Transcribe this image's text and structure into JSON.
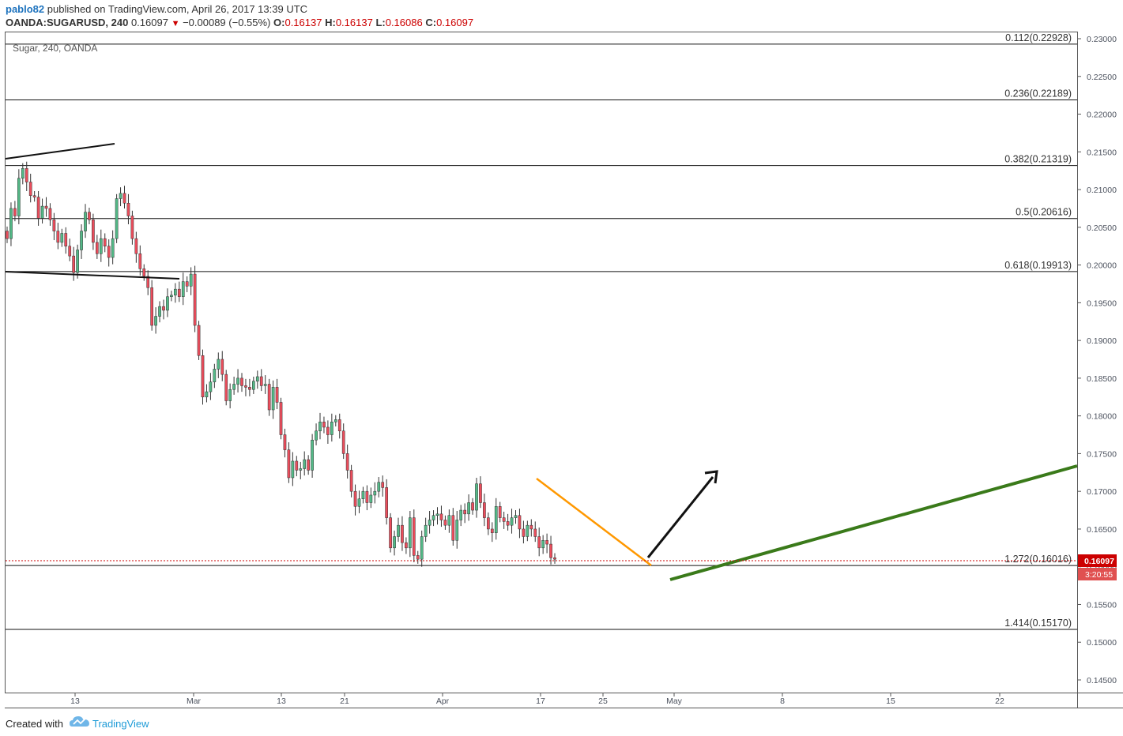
{
  "header": {
    "author": "pablo82",
    "published_text": "published on TradingView.com, April 26, 2017 13:39 UTC",
    "symbol": "OANDA:SUGARUSD, 240",
    "last": "0.16097",
    "change": "−0.00089 (−0.55%)",
    "o_label": "O:",
    "o_value": "0.16137",
    "h_label": "H:",
    "h_value": "0.16137",
    "l_label": "L:",
    "l_value": "0.16086",
    "c_label": "C:",
    "c_value": "0.16097"
  },
  "footer": {
    "created_with": "Created with",
    "brand": "TradingView"
  },
  "colors": {
    "up": "#53b987",
    "down": "#eb4d5c",
    "axis_text": "#4c525e",
    "green_line": "#3a7a1a",
    "orange_line": "#ff9800",
    "price_tag": "#cc0000"
  },
  "chart_data": {
    "type": "candlestick",
    "title": "Sugar, 240, OANDA",
    "ylim": [
      0.1425,
      0.231
    ],
    "y_ticks": [
      "0.23000",
      "0.22500",
      "0.22000",
      "0.21500",
      "0.21000",
      "0.20500",
      "0.20000",
      "0.19500",
      "0.19000",
      "0.18500",
      "0.18000",
      "0.17500",
      "0.17000",
      "0.16500",
      "0.16000",
      "0.15500",
      "0.15000",
      "0.14500"
    ],
    "x_ticks": [
      "13",
      "Mar",
      "13",
      "21",
      "Apr",
      "17",
      "25",
      "May",
      "8",
      "15",
      "22"
    ],
    "fib_levels": [
      {
        "label": "0.112(0.22928)",
        "value": 0.22928
      },
      {
        "label": "0.236(0.22189)",
        "value": 0.22189
      },
      {
        "label": "0.382(0.21319)",
        "value": 0.21319
      },
      {
        "label": "0.5(0.20616)",
        "value": 0.20616
      },
      {
        "label": "0.618(0.19913)",
        "value": 0.19913
      },
      {
        "label": "1.272(0.16016)",
        "value": 0.16016
      },
      {
        "label": "1.414(0.15170)",
        "value": 0.1517
      }
    ],
    "current_price": "0.16097",
    "countdown": "3:20:55",
    "closes": [
      0.2035,
      0.2075,
      0.2065,
      0.2115,
      0.2128,
      0.211,
      0.2092,
      0.209,
      0.2062,
      0.2078,
      0.2075,
      0.206,
      0.2045,
      0.203,
      0.2042,
      0.2025,
      0.2012,
      0.199,
      0.202,
      0.2045,
      0.207,
      0.206,
      0.203,
      0.2015,
      0.2035,
      0.2025,
      0.201,
      0.2035,
      0.2088,
      0.2095,
      0.2082,
      0.2065,
      0.2035,
      0.2015,
      0.1995,
      0.1985,
      0.197,
      0.192,
      0.1932,
      0.1945,
      0.194,
      0.1958,
      0.196,
      0.1968,
      0.1958,
      0.1978,
      0.1972,
      0.1988,
      0.192,
      0.188,
      0.1825,
      0.1832,
      0.1845,
      0.1862,
      0.1875,
      0.1855,
      0.182,
      0.1835,
      0.1842,
      0.185,
      0.184,
      0.1838,
      0.1835,
      0.1846,
      0.1852,
      0.184,
      0.1842,
      0.1808,
      0.1838,
      0.1818,
      0.1775,
      0.1755,
      0.1718,
      0.174,
      0.1728,
      0.173,
      0.1742,
      0.1728,
      0.1768,
      0.178,
      0.1792,
      0.1785,
      0.1775,
      0.1792,
      0.1795,
      0.178,
      0.175,
      0.1728,
      0.17,
      0.168,
      0.169,
      0.17,
      0.1685,
      0.1695,
      0.17,
      0.1712,
      0.1705,
      0.1665,
      0.1625,
      0.164,
      0.1655,
      0.1632,
      0.1625,
      0.1665,
      0.1615,
      0.161,
      0.164,
      0.1655,
      0.1662,
      0.1668,
      0.167,
      0.1662,
      0.1655,
      0.1668,
      0.1635,
      0.1662,
      0.1675,
      0.167,
      0.1685,
      0.1675,
      0.171,
      0.1685,
      0.1665,
      0.165,
      0.1645,
      0.168,
      0.1665,
      0.166,
      0.1655,
      0.1665,
      0.1668,
      0.165,
      0.164,
      0.1655,
      0.165,
      0.164,
      0.1625,
      0.1635,
      0.163,
      0.1612,
      0.161
    ]
  }
}
